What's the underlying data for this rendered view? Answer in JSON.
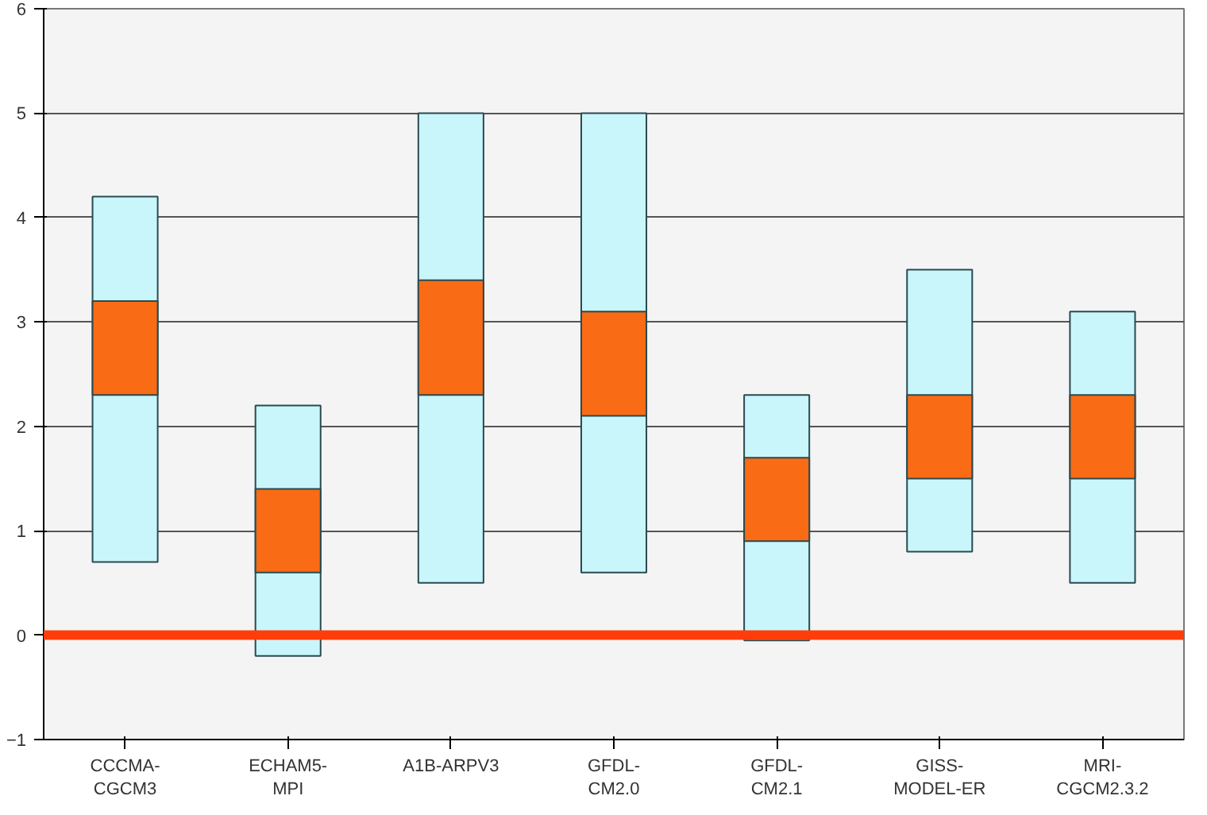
{
  "chart_data": {
    "type": "bar",
    "categories": [
      "CCCMA-CGCM3",
      "ECHAM5-MPI",
      "A1B-ARPV3",
      "GFDL-CM2.0",
      "GFDL-CM2.1",
      "GISS-MODEL-ER",
      "MRI-CGCM2.3.2"
    ],
    "series": [
      {
        "color": "#c8f6fb",
        "base": [
          0.7,
          -0.2,
          0.5,
          0.6,
          -0.05,
          0.8,
          0.5
        ],
        "values": [
          3.5,
          2.4,
          4.5,
          4.4,
          2.35,
          2.7,
          2.6
        ]
      },
      {
        "color": "#f96b14",
        "base": [
          2.3,
          0.6,
          2.3,
          2.1,
          0.9,
          1.5,
          1.5
        ],
        "values": [
          0.9,
          0.8,
          1.1,
          1.0,
          0.8,
          0.8,
          0.8
        ]
      }
    ],
    "ylim": [
      -1,
      6
    ],
    "yticks": [
      -1,
      0,
      1,
      2,
      3,
      4,
      5,
      6
    ],
    "grid": "y",
    "ref_lines": [
      {
        "axis": "y",
        "value": 0,
        "color": "#ff3d0a"
      }
    ]
  }
}
